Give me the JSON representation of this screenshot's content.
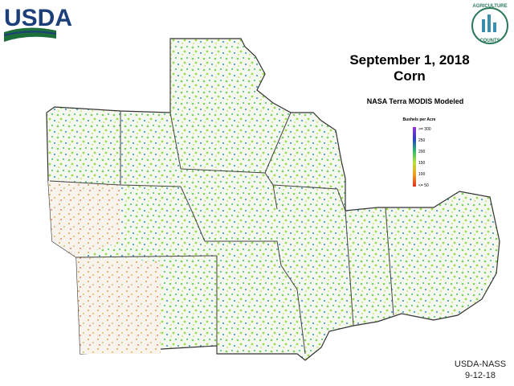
{
  "header": {
    "logo": "USDA",
    "seal_top": "AGRICULTURE",
    "seal_bottom": "COUNTS"
  },
  "title": {
    "date": "September 1, 2018",
    "crop": "Corn",
    "subtitle": "NASA Terra MODIS Modeled"
  },
  "legend": {
    "title": "Bushels per Acre",
    "labels": [
      ">= 300",
      "250",
      "200",
      "150",
      "100",
      "<= 50"
    ]
  },
  "footer": {
    "source": "USDA-NASS",
    "date": "9-12-18"
  }
}
